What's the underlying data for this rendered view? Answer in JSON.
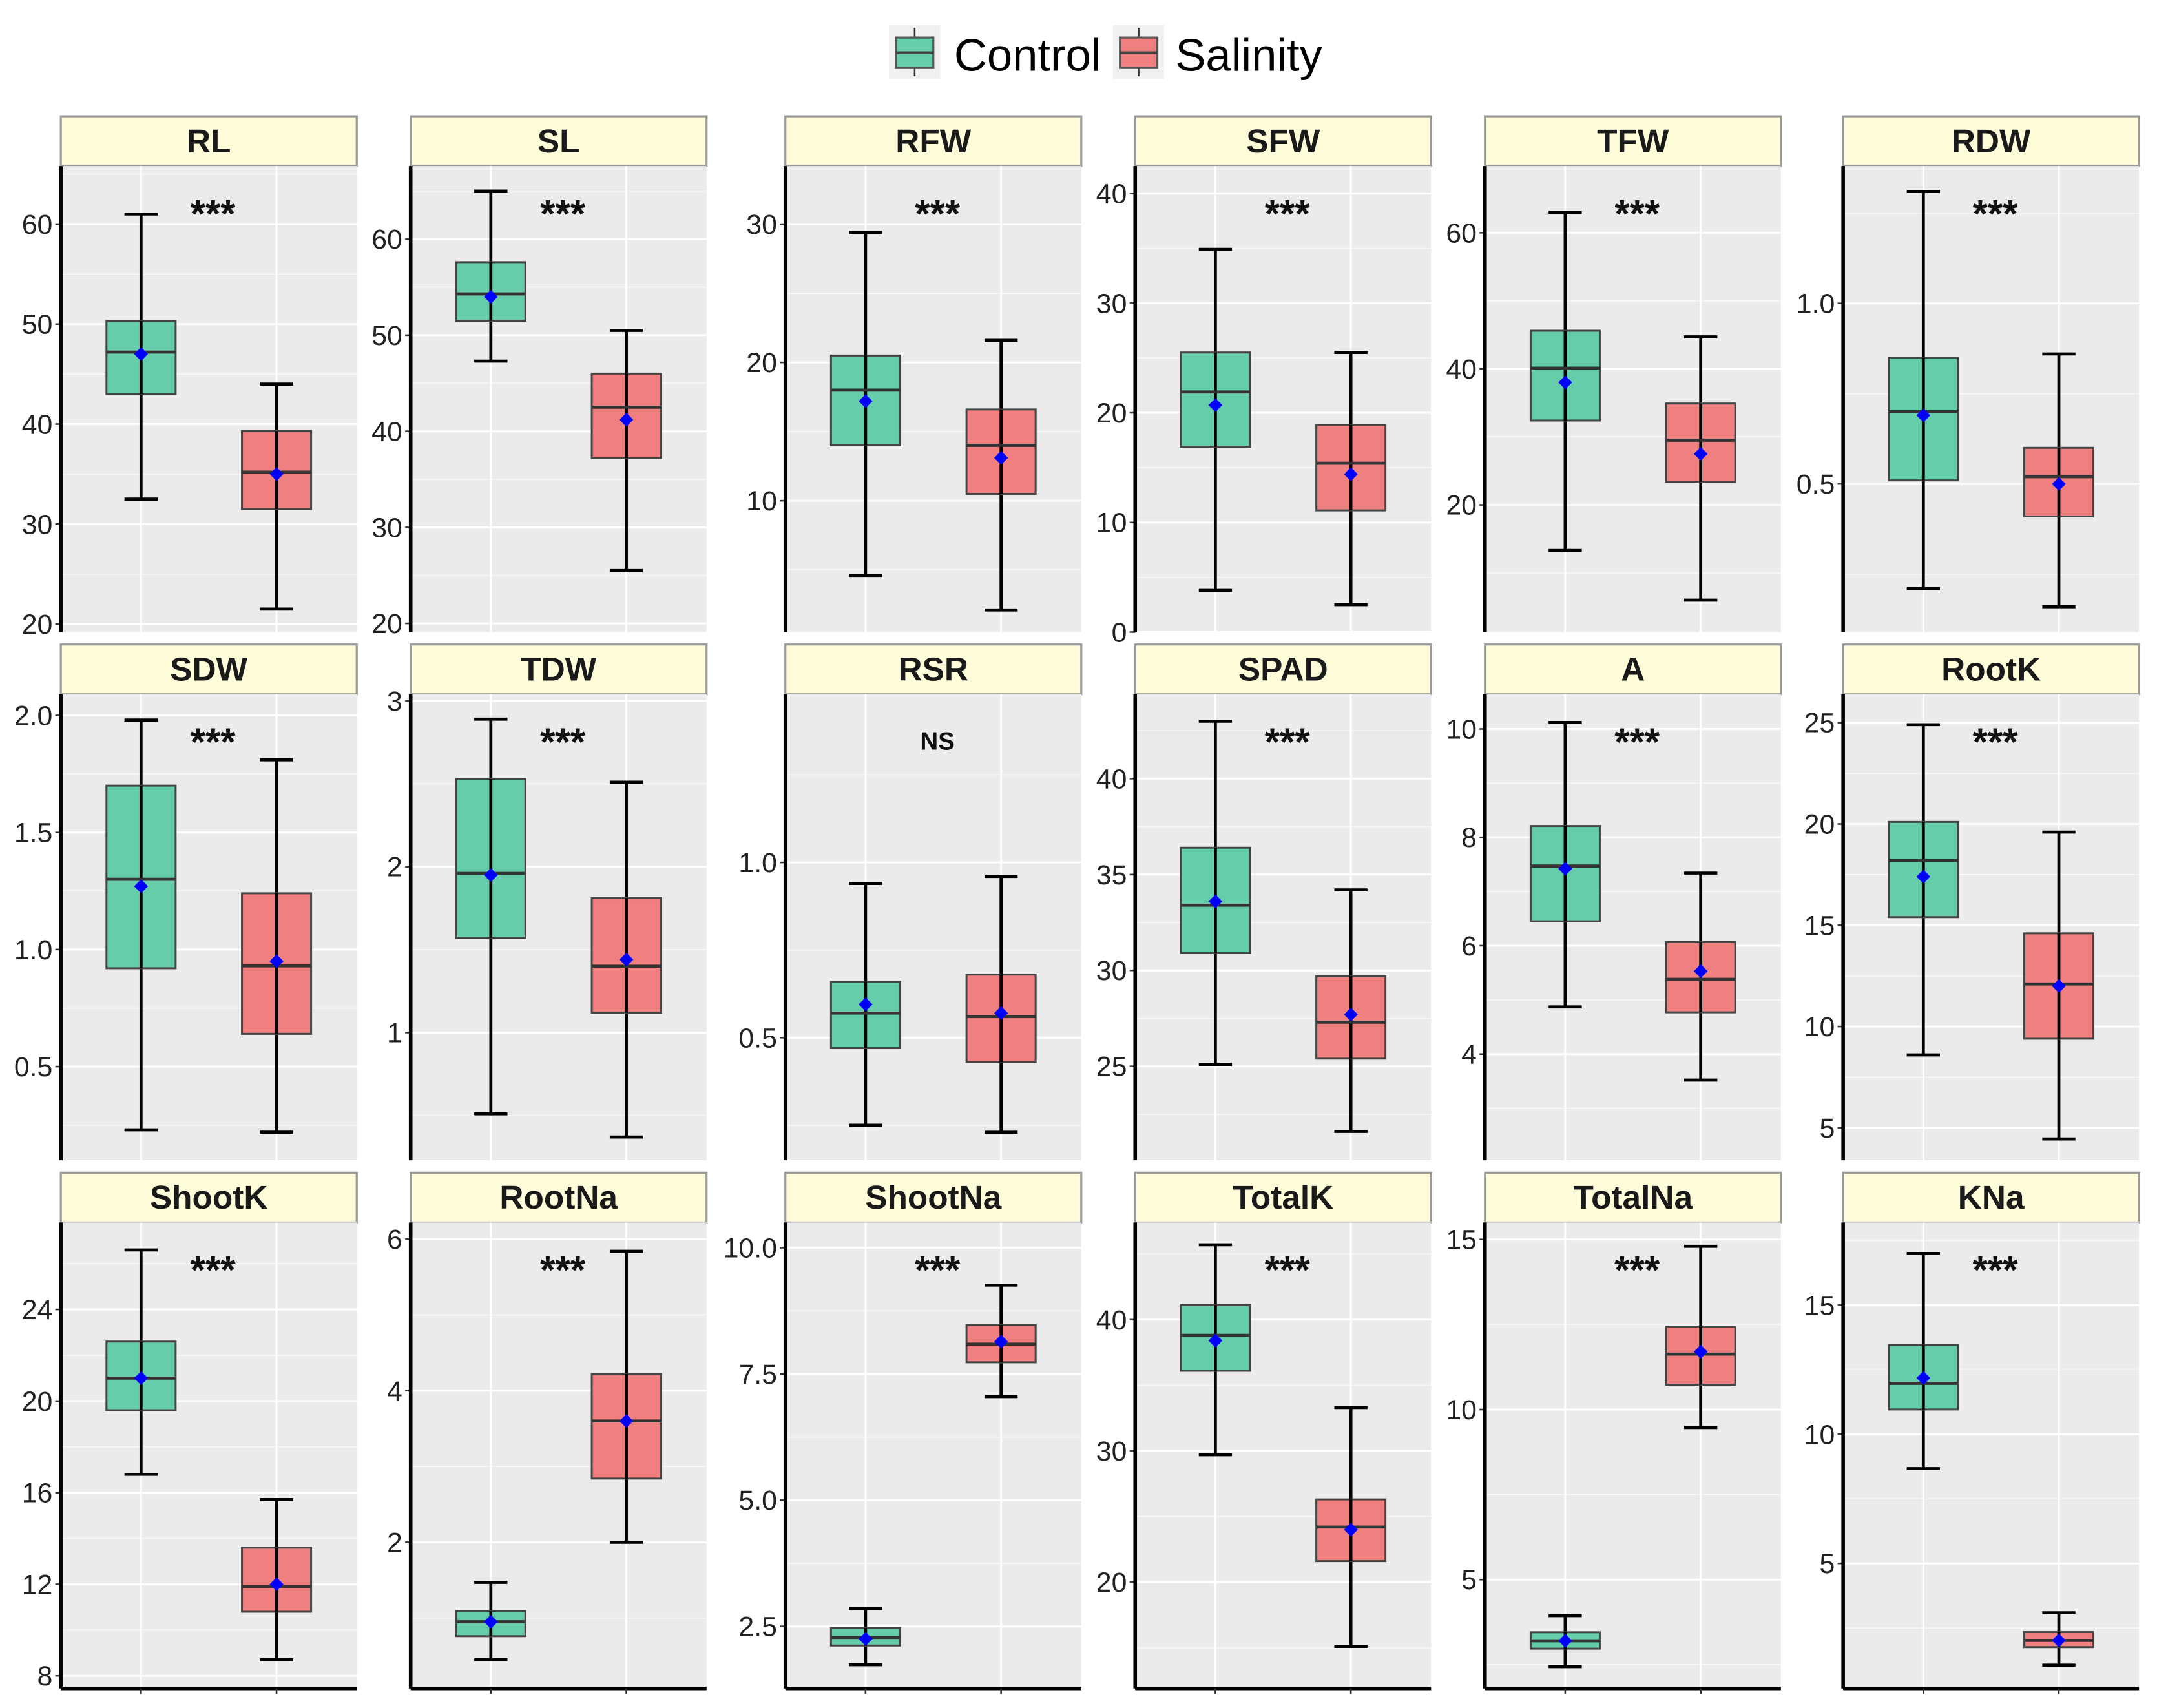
{
  "chart_data": {
    "type": "boxplot",
    "legend": {
      "placement": "top-center",
      "entries": [
        {
          "label": "Control",
          "color": "#66CDAA"
        },
        {
          "label": "Salinity",
          "color": "#F08080"
        }
      ]
    },
    "mean_marker_color": "#0000FF",
    "strip_color": "#FFFDD9",
    "groups": [
      "Control",
      "Salinity"
    ],
    "panels": [
      {
        "title": "RL",
        "sig": "***",
        "ylim": [
          19.2,
          65.8
        ],
        "ticks": [
          "20",
          "30",
          "40",
          "50",
          "60"
        ],
        "tick_values": [
          20,
          30,
          40,
          50,
          60
        ],
        "boxes": [
          {
            "low": 32.5,
            "q1": 43,
            "median": 47.2,
            "q3": 50.3,
            "high": 61,
            "mean": 47
          },
          {
            "low": 21.5,
            "q1": 31.5,
            "median": 35.2,
            "q3": 39.3,
            "high": 44,
            "mean": 35
          }
        ]
      },
      {
        "title": "SL",
        "sig": "***",
        "ylim": [
          19.1,
          67.6
        ],
        "ticks": [
          "20",
          "30",
          "40",
          "50",
          "60"
        ],
        "tick_values": [
          20,
          30,
          40,
          50,
          60
        ],
        "boxes": [
          {
            "low": 47.3,
            "q1": 51.5,
            "median": 54.3,
            "q3": 57.6,
            "high": 65,
            "mean": 54
          },
          {
            "low": 25.5,
            "q1": 37.2,
            "median": 42.5,
            "q3": 46,
            "high": 50.5,
            "mean": 41.2
          }
        ]
      },
      {
        "title": "RFW",
        "sig": "***",
        "ylim": [
          0.5,
          34.2
        ],
        "ticks": [
          "10",
          "20",
          "30"
        ],
        "tick_values": [
          10,
          20,
          30
        ],
        "boxes": [
          {
            "low": 4.6,
            "q1": 14,
            "median": 18,
            "q3": 20.5,
            "high": 29.4,
            "mean": 17.2
          },
          {
            "low": 2.1,
            "q1": 10.5,
            "median": 14,
            "q3": 16.6,
            "high": 21.6,
            "mean": 13.1
          }
        ]
      },
      {
        "title": "SFW",
        "sig": "***",
        "ylim": [
          0,
          42.5
        ],
        "ticks": [
          "0",
          "10",
          "20",
          "30",
          "40"
        ],
        "tick_values": [
          0,
          10,
          20,
          30,
          40
        ],
        "boxes": [
          {
            "low": 3.8,
            "q1": 16.9,
            "median": 21.9,
            "q3": 25.5,
            "high": 34.9,
            "mean": 20.7
          },
          {
            "low": 2.5,
            "q1": 11.1,
            "median": 15.4,
            "q3": 18.9,
            "high": 25.5,
            "mean": 14.4
          }
        ]
      },
      {
        "title": "TFW",
        "sig": "***",
        "ylim": [
          1.3,
          69.8
        ],
        "ticks": [
          "20",
          "40",
          "60"
        ],
        "tick_values": [
          20,
          40,
          60
        ],
        "boxes": [
          {
            "low": 13.3,
            "q1": 32.4,
            "median": 40.1,
            "q3": 45.6,
            "high": 63,
            "mean": 38
          },
          {
            "low": 6,
            "q1": 23.4,
            "median": 29.5,
            "q3": 34.9,
            "high": 44.7,
            "mean": 27.5
          }
        ]
      },
      {
        "title": "RDW",
        "sig": "***",
        "ylim": [
          0.09,
          1.38
        ],
        "ticks": [
          "0.5",
          "1.0"
        ],
        "tick_values": [
          0.5,
          1.0
        ],
        "boxes": [
          {
            "low": 0.21,
            "q1": 0.51,
            "median": 0.7,
            "q3": 0.85,
            "high": 1.31,
            "mean": 0.69
          },
          {
            "low": 0.16,
            "q1": 0.41,
            "median": 0.52,
            "q3": 0.6,
            "high": 0.86,
            "mean": 0.5
          }
        ]
      },
      {
        "title": "SDW",
        "sig": "***",
        "ylim": [
          0.1,
          2.09
        ],
        "ticks": [
          "0.5",
          "1.0",
          "1.5",
          "2.0"
        ],
        "tick_values": [
          0.5,
          1.0,
          1.5,
          2.0
        ],
        "boxes": [
          {
            "low": 0.23,
            "q1": 0.92,
            "median": 1.3,
            "q3": 1.7,
            "high": 1.98,
            "mean": 1.27
          },
          {
            "low": 0.22,
            "q1": 0.64,
            "median": 0.93,
            "q3": 1.24,
            "high": 1.81,
            "mean": 0.95
          }
        ]
      },
      {
        "title": "TDW",
        "sig": "***",
        "ylim": [
          0.23,
          3.04
        ],
        "ticks": [
          "1",
          "2",
          "3"
        ],
        "tick_values": [
          1,
          2,
          3
        ],
        "boxes": [
          {
            "low": 0.51,
            "q1": 1.57,
            "median": 1.96,
            "q3": 2.53,
            "high": 2.89,
            "mean": 1.95
          },
          {
            "low": 0.37,
            "q1": 1.12,
            "median": 1.4,
            "q3": 1.81,
            "high": 2.51,
            "mean": 1.44
          }
        ]
      },
      {
        "title": "RSR",
        "sig": "NS",
        "ylim": [
          0.15,
          1.48
        ],
        "ticks": [
          "0.5",
          "1.0"
        ],
        "tick_values": [
          0.5,
          1.0
        ],
        "boxes": [
          {
            "low": 0.25,
            "q1": 0.47,
            "median": 0.57,
            "q3": 0.66,
            "high": 0.94,
            "mean": 0.595
          },
          {
            "low": 0.23,
            "q1": 0.43,
            "median": 0.56,
            "q3": 0.68,
            "high": 0.96,
            "mean": 0.57
          }
        ]
      },
      {
        "title": "SPAD",
        "sig": "***",
        "ylim": [
          20.1,
          44.4
        ],
        "ticks": [
          "25",
          "30",
          "35",
          "40"
        ],
        "tick_values": [
          25,
          30,
          35,
          40
        ],
        "boxes": [
          {
            "low": 25.1,
            "q1": 30.9,
            "median": 33.4,
            "q3": 36.4,
            "high": 43,
            "mean": 33.6
          },
          {
            "low": 21.6,
            "q1": 25.4,
            "median": 27.3,
            "q3": 29.7,
            "high": 34.2,
            "mean": 27.7
          }
        ]
      },
      {
        "title": "A",
        "sig": "***",
        "ylim": [
          2.04,
          10.64
        ],
        "ticks": [
          "4",
          "6",
          "8",
          "10"
        ],
        "tick_values": [
          4,
          6,
          8,
          10
        ],
        "boxes": [
          {
            "low": 4.87,
            "q1": 6.45,
            "median": 7.47,
            "q3": 8.21,
            "high": 10.12,
            "mean": 7.42
          },
          {
            "low": 3.52,
            "q1": 4.77,
            "median": 5.38,
            "q3": 6.07,
            "high": 7.34,
            "mean": 5.53
          }
        ]
      },
      {
        "title": "RootK",
        "sig": "***",
        "ylim": [
          3.4,
          26.4
        ],
        "ticks": [
          "5",
          "10",
          "15",
          "20",
          "25"
        ],
        "tick_values": [
          5,
          10,
          15,
          20,
          25
        ],
        "boxes": [
          {
            "low": 8.6,
            "q1": 15.4,
            "median": 18.2,
            "q3": 20.1,
            "high": 24.9,
            "mean": 17.4
          },
          {
            "low": 4.45,
            "q1": 9.4,
            "median": 12.1,
            "q3": 14.6,
            "high": 19.6,
            "mean": 12.0
          }
        ]
      },
      {
        "title": "ShootK",
        "sig": "***",
        "ylim": [
          7.45,
          27.8
        ],
        "ticks": [
          "8",
          "12",
          "16",
          "20",
          "24"
        ],
        "tick_values": [
          8,
          12,
          16,
          20,
          24
        ],
        "boxes": [
          {
            "low": 16.8,
            "q1": 19.6,
            "median": 21.0,
            "q3": 22.6,
            "high": 26.6,
            "mean": 21.0
          },
          {
            "low": 8.7,
            "q1": 10.8,
            "median": 11.9,
            "q3": 13.6,
            "high": 15.7,
            "mean": 12.0
          }
        ]
      },
      {
        "title": "RootNa",
        "sig": "***",
        "ylim": [
          0.07,
          6.22
        ],
        "ticks": [
          "2",
          "4",
          "6"
        ],
        "tick_values": [
          2,
          4,
          6
        ],
        "boxes": [
          {
            "low": 0.45,
            "q1": 0.76,
            "median": 0.95,
            "q3": 1.09,
            "high": 1.47,
            "mean": 0.95
          },
          {
            "low": 2.0,
            "q1": 2.84,
            "median": 3.6,
            "q3": 4.22,
            "high": 5.84,
            "mean": 3.6
          }
        ]
      },
      {
        "title": "ShootNa",
        "sig": "***",
        "ylim": [
          1.27,
          10.5
        ],
        "ticks": [
          "2.5",
          "5.0",
          "7.5",
          "10.0"
        ],
        "tick_values": [
          2.5,
          5.0,
          7.5,
          10.0
        ],
        "boxes": [
          {
            "low": 1.74,
            "q1": 2.12,
            "median": 2.28,
            "q3": 2.47,
            "high": 2.85,
            "mean": 2.25
          },
          {
            "low": 7.05,
            "q1": 7.73,
            "median": 8.09,
            "q3": 8.47,
            "high": 9.26,
            "mean": 8.14
          }
        ]
      },
      {
        "title": "TotalK",
        "sig": "***",
        "ylim": [
          11.9,
          47.4
        ],
        "ticks": [
          "20",
          "30",
          "40"
        ],
        "tick_values": [
          20,
          30,
          40
        ],
        "boxes": [
          {
            "low": 29.7,
            "q1": 36.1,
            "median": 38.8,
            "q3": 41.1,
            "high": 45.7,
            "mean": 38.4
          },
          {
            "low": 15.1,
            "q1": 21.6,
            "median": 24.2,
            "q3": 26.3,
            "high": 33.3,
            "mean": 24.0
          }
        ]
      },
      {
        "title": "TotalNa",
        "sig": "***",
        "ylim": [
          1.8,
          15.5
        ],
        "ticks": [
          "5",
          "10",
          "15"
        ],
        "tick_values": [
          5,
          10,
          15
        ],
        "boxes": [
          {
            "low": 2.44,
            "q1": 2.97,
            "median": 3.2,
            "q3": 3.45,
            "high": 3.94,
            "mean": 3.2
          },
          {
            "low": 9.47,
            "q1": 10.73,
            "median": 11.63,
            "q3": 12.44,
            "high": 14.8,
            "mean": 11.7
          }
        ]
      },
      {
        "title": "KNa",
        "sig": "***",
        "ylim": [
          0.16,
          18.2
        ],
        "ticks": [
          "5",
          "10",
          "15"
        ],
        "tick_values": [
          5,
          10,
          15
        ],
        "boxes": [
          {
            "low": 8.67,
            "q1": 10.96,
            "median": 11.97,
            "q3": 13.46,
            "high": 17.0,
            "mean": 12.18
          },
          {
            "low": 1.06,
            "q1": 1.76,
            "median": 2.02,
            "q3": 2.34,
            "high": 3.09,
            "mean": 2.02
          }
        ]
      }
    ]
  }
}
